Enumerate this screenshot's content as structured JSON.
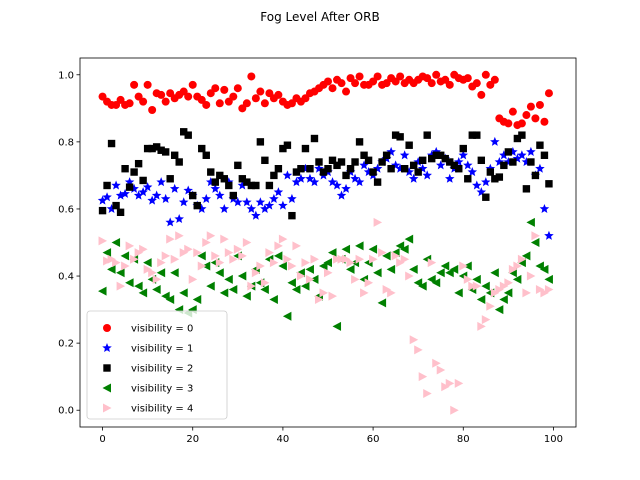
{
  "chart_data": {
    "type": "scatter",
    "title": "Fog Level After ORB",
    "xlabel": "",
    "ylabel": "",
    "xlim": [
      -5,
      105
    ],
    "ylim": [
      -0.05,
      1.05
    ],
    "x_ticks": [
      0,
      20,
      40,
      60,
      80,
      100
    ],
    "y_ticks": [
      0.0,
      0.2,
      0.4,
      0.6,
      0.8,
      1.0
    ],
    "x_tick_labels": [
      "0",
      "20",
      "40",
      "60",
      "80",
      "100"
    ],
    "y_tick_labels": [
      "0.0",
      "0.2",
      "0.4",
      "0.6",
      "0.8",
      "1.0"
    ],
    "grid": false,
    "legend_position": "lower-left",
    "series": [
      {
        "name": "visibility = 0",
        "marker": "circle",
        "color": "#ff0000",
        "values": [
          0.935,
          0.92,
          0.91,
          0.91,
          0.925,
          0.91,
          0.915,
          0.97,
          0.935,
          0.92,
          0.97,
          0.895,
          0.945,
          0.94,
          0.92,
          0.945,
          0.93,
          0.94,
          0.95,
          0.935,
          0.97,
          0.935,
          0.925,
          0.91,
          0.945,
          0.96,
          0.915,
          0.955,
          0.92,
          0.935,
          0.96,
          0.9,
          0.915,
          0.995,
          0.93,
          0.95,
          0.915,
          0.945,
          0.93,
          0.94,
          0.92,
          0.91,
          0.915,
          0.93,
          0.92,
          0.93,
          0.945,
          0.95,
          0.96,
          0.97,
          0.98,
          0.96,
          0.985,
          0.975,
          0.95,
          0.99,
          0.975,
          0.995,
          0.97,
          0.97,
          0.98,
          0.995,
          0.97,
          0.975,
          0.99,
          0.98,
          0.995,
          0.975,
          0.985,
          0.975,
          0.985,
          0.995,
          0.99,
          0.975,
          1.0,
          0.98,
          0.985,
          0.97,
          1.0,
          0.99,
          0.985,
          0.99,
          0.965,
          0.975,
          0.94,
          1.0,
          0.97,
          0.985,
          0.87,
          0.86,
          0.855,
          0.89,
          0.85,
          0.855,
          0.88,
          0.905,
          0.87,
          0.91,
          0.86,
          0.945
        ]
      },
      {
        "name": "visibility = 1",
        "marker": "star",
        "color": "#0000ff",
        "values": [
          0.625,
          0.635,
          0.6,
          0.67,
          0.64,
          0.645,
          0.68,
          0.66,
          0.64,
          0.65,
          0.665,
          0.625,
          0.64,
          0.68,
          0.63,
          0.56,
          0.66,
          0.57,
          0.62,
          0.655,
          0.64,
          0.61,
          0.6,
          0.63,
          0.68,
          0.66,
          0.64,
          0.6,
          0.68,
          0.63,
          0.62,
          0.67,
          0.62,
          0.6,
          0.58,
          0.62,
          0.6,
          0.61,
          0.63,
          0.65,
          0.61,
          0.7,
          0.63,
          0.68,
          0.69,
          0.72,
          0.69,
          0.68,
          0.72,
          0.7,
          0.71,
          0.68,
          0.67,
          0.64,
          0.66,
          0.71,
          0.69,
          0.68,
          0.73,
          0.71,
          0.7,
          0.72,
          0.74,
          0.75,
          0.77,
          0.73,
          0.72,
          0.76,
          0.71,
          0.69,
          0.74,
          0.72,
          0.7,
          0.76,
          0.77,
          0.73,
          0.75,
          0.69,
          0.72,
          0.74,
          0.76,
          0.73,
          0.71,
          0.67,
          0.65,
          0.68,
          0.72,
          0.8,
          0.74,
          0.76,
          0.74,
          0.77,
          0.75,
          0.76,
          0.74,
          0.77,
          0.7,
          0.72,
          0.6,
          0.52
        ]
      },
      {
        "name": "visibility = 2",
        "marker": "square",
        "color": "#000000",
        "values": [
          0.595,
          0.67,
          0.795,
          0.61,
          0.59,
          0.72,
          0.665,
          0.71,
          0.735,
          0.685,
          0.78,
          0.78,
          0.785,
          0.775,
          0.77,
          0.69,
          0.76,
          0.74,
          0.83,
          0.82,
          0.64,
          0.61,
          0.78,
          0.76,
          0.71,
          0.68,
          0.7,
          0.69,
          0.67,
          0.64,
          0.73,
          0.69,
          0.68,
          0.67,
          0.67,
          0.8,
          0.745,
          0.67,
          0.7,
          0.72,
          0.78,
          0.79,
          0.58,
          0.71,
          0.72,
          0.78,
          0.72,
          0.81,
          0.74,
          0.71,
          0.72,
          0.745,
          0.73,
          0.74,
          0.7,
          0.72,
          0.74,
          0.8,
          0.76,
          0.745,
          0.71,
          0.68,
          0.74,
          0.76,
          0.72,
          0.82,
          0.815,
          0.72,
          0.79,
          0.73,
          0.71,
          0.745,
          0.82,
          0.75,
          0.76,
          0.76,
          0.75,
          0.74,
          0.73,
          0.72,
          0.78,
          0.69,
          0.82,
          0.82,
          0.745,
          0.635,
          0.71,
          0.69,
          0.695,
          0.73,
          0.77,
          0.74,
          0.81,
          0.82,
          0.66,
          0.74,
          0.7,
          0.79,
          0.76,
          0.675
        ]
      },
      {
        "name": "visibility = 3",
        "marker": "triangle-left",
        "color": "#008000",
        "values": [
          0.355,
          0.47,
          0.42,
          0.5,
          0.41,
          0.46,
          0.38,
          0.45,
          0.37,
          0.35,
          0.44,
          0.39,
          0.36,
          0.41,
          0.34,
          0.33,
          0.41,
          0.3,
          0.35,
          0.29,
          0.3,
          0.33,
          0.46,
          0.43,
          0.37,
          0.44,
          0.41,
          0.35,
          0.39,
          0.36,
          0.46,
          0.4,
          0.34,
          0.37,
          0.42,
          0.38,
          0.36,
          0.45,
          0.33,
          0.46,
          0.43,
          0.28,
          0.38,
          0.36,
          0.41,
          0.37,
          0.42,
          0.39,
          0.34,
          0.43,
          0.44,
          0.47,
          0.25,
          0.45,
          0.48,
          0.42,
          0.44,
          0.49,
          0.39,
          0.44,
          0.48,
          0.41,
          0.32,
          0.46,
          0.42,
          0.47,
          0.49,
          0.48,
          0.51,
          0.42,
          0.38,
          0.37,
          0.45,
          0.39,
          0.38,
          0.41,
          0.43,
          0.41,
          0.42,
          0.35,
          0.4,
          0.43,
          0.36,
          0.39,
          0.33,
          0.37,
          0.35,
          0.41,
          0.3,
          0.33,
          0.35,
          0.41,
          0.39,
          0.44,
          0.46,
          0.56,
          0.5,
          0.43,
          0.42,
          0.39
        ]
      },
      {
        "name": "visibility = 4",
        "marker": "triangle-right",
        "color": "#ffc0cb",
        "values": [
          0.505,
          0.445,
          0.45,
          0.44,
          0.37,
          0.43,
          0.49,
          0.45,
          0.47,
          0.48,
          0.42,
          0.41,
          0.39,
          0.44,
          0.46,
          0.51,
          0.45,
          0.52,
          0.47,
          0.48,
          0.39,
          0.47,
          0.43,
          0.5,
          0.52,
          0.46,
          0.44,
          0.51,
          0.47,
          0.45,
          0.48,
          0.46,
          0.5,
          0.37,
          0.41,
          0.43,
          0.38,
          0.47,
          0.44,
          0.49,
          0.51,
          0.45,
          0.43,
          0.49,
          0.4,
          0.44,
          0.39,
          0.45,
          0.33,
          0.35,
          0.41,
          0.34,
          0.45,
          0.45,
          0.45,
          0.44,
          0.39,
          0.45,
          0.35,
          0.38,
          0.45,
          0.56,
          0.47,
          0.36,
          0.35,
          0.46,
          0.44,
          0.45,
          0.4,
          0.21,
          0.18,
          0.1,
          0.05,
          0.44,
          0.14,
          0.12,
          0.07,
          0.08,
          0.0,
          0.08,
          0.43,
          0.39,
          0.37,
          0.37,
          0.25,
          0.27,
          0.31,
          0.35,
          0.36,
          0.37,
          0.38,
          0.42,
          0.43,
          0.45,
          0.35,
          0.4,
          0.52,
          0.36,
          0.35,
          0.36
        ]
      }
    ]
  }
}
